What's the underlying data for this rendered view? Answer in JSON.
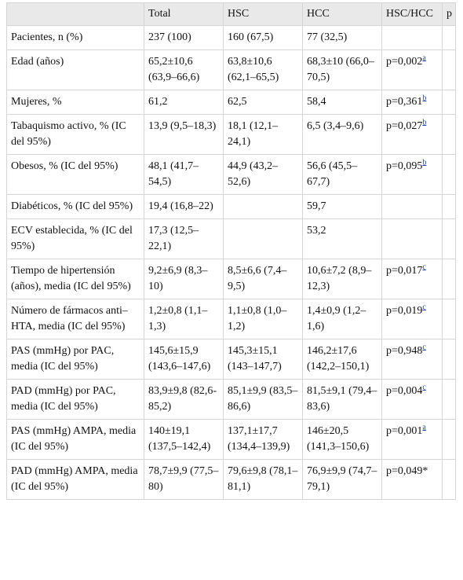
{
  "table": {
    "header": [
      "",
      "Total",
      "HSC",
      "HCC",
      "HSC/HCC",
      "p"
    ],
    "rows": [
      [
        "Pacientes, n (%)",
        "237 (100)",
        "160 (67,5)",
        "77 (32,5)",
        null
      ],
      [
        "Edad (años)",
        "65,2±10,6 (63,9–66,6)",
        "63,8±10,6 (62,1–65,5)",
        "68,3±10 (66,0–70,5)",
        {
          "value": "p=0,002",
          "note": "a"
        }
      ],
      [
        "Mujeres, %",
        "61,2",
        "62,5",
        "58,4",
        {
          "value": "p=0,361",
          "note": "b"
        }
      ],
      [
        "Tabaquismo activo, % (IC del 95%)",
        "13,9 (9,5–18,3)",
        "18,1 (12,1–24,1)",
        "6,5 (3,4–9,6)",
        {
          "value": "p=0,027",
          "note": "b"
        }
      ],
      [
        "Obesos, % (IC del 95%)",
        "48,1 (41,7–54,5)",
        "44,9 (43,2–52,6)",
        "56,6 (45,5–67,7)",
        {
          "value": "p=0,095",
          "note": "b"
        }
      ],
      [
        "Diabéticos, % (IC del 95%)",
        "19,4 (16,8–22)",
        null,
        "59,7",
        null
      ],
      [
        "ECV establecida, % (IC del 95%)",
        "17,3 (12,5–22,1)",
        null,
        "53,2",
        null
      ],
      [
        "Tiempo de hipertensión (años), media (IC del 95%)",
        "9,2±6,9 (8,3–10)",
        "8,5±6,6 (7,4–9,5)",
        "10,6±7,2 (8,9–12,3)",
        {
          "value": "p=0,017",
          "note": "c"
        }
      ],
      [
        "Número de fármacos anti–HTA, media (IC del 95%)",
        "1,2±0,8 (1,1–1,3)",
        "1,1±0,8 (1,0–1,2)",
        "1,4±0,9 (1,2–1,6)",
        {
          "value": "p=0,019",
          "note": "c"
        }
      ],
      [
        "PAS (mmHg) por PAC, media (IC del 95%)",
        "145,6±15,9 (143,6–147,6)",
        "145,3±15,1 (143–147,7)",
        "146,2±17,6 (142,2–150,1)",
        {
          "value": "p=0,948",
          "note": "c"
        }
      ],
      [
        "PAD (mmHg) por PAC, media (IC del 95%)",
        "83,9±9,8 (82,6-85,2)",
        "85,1±9,9 (83,5–86,6)",
        "81,5±9,1 (79,4–83,6)",
        {
          "value": "p=0,004",
          "note": "c"
        }
      ],
      [
        "PAS (mmHg) AMPA, media (IC del 95%)",
        "140±19,1 (137,5–142,4)",
        "137,1±17,7 (134,4–139,9)",
        "146±20,5 (141,3–150,6)",
        {
          "value": "p=0,001",
          "note": "a"
        }
      ],
      [
        "PAD (mmHg) AMPA, media (IC del 95%)",
        "78,7±9,9 (77,5–80)",
        "79,6±9,8 (78,1–81,1)",
        "76,9±9,9 (74,7–79,1)",
        "p=0,049*"
      ]
    ]
  }
}
